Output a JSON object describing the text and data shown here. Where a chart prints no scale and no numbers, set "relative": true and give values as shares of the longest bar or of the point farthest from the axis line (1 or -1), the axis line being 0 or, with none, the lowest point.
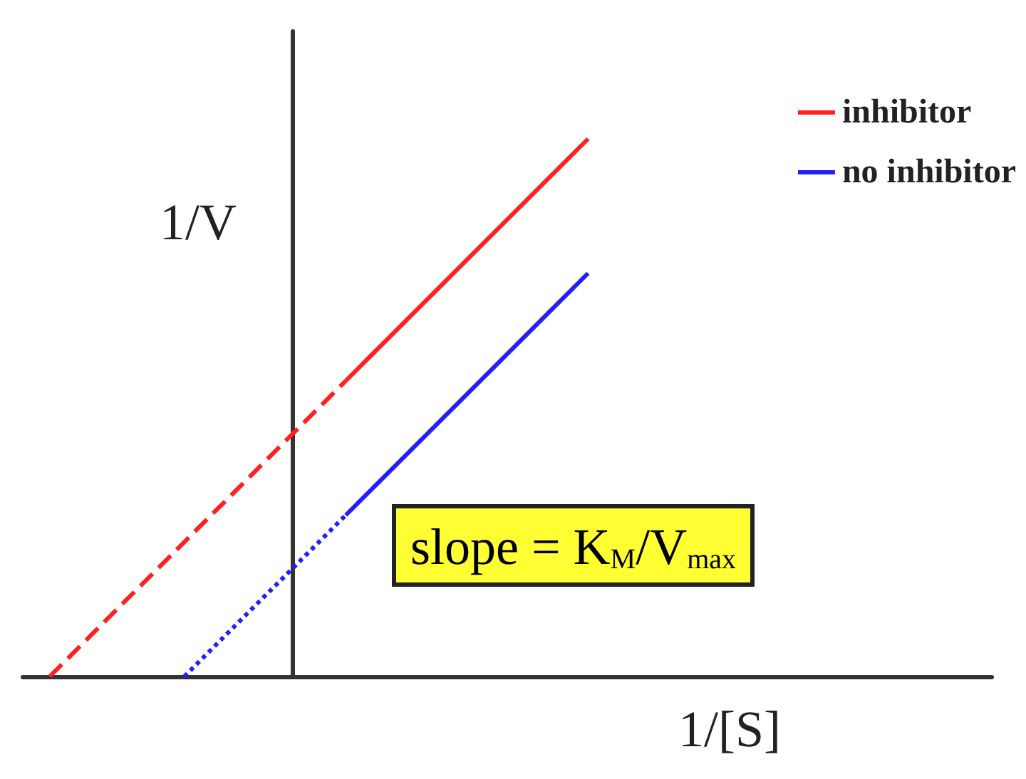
{
  "chart_data": {
    "type": "line",
    "relative": true,
    "xlabel": "1/[S]",
    "ylabel": "1/V",
    "annotations": [
      "slope = K$_{M}$/V$_{max}$"
    ],
    "categories": [
      null,
      null,
      null,
      null,
      null,
      null,
      null,
      null,
      null,
      null,
      null,
      null,
      null,
      null,
      null,
      null,
      null,
      null,
      null,
      null,
      null,
      null,
      null,
      null,
      null,
      null,
      null,
      null,
      null,
      null,
      null,
      null,
      null,
      null,
      null,
      null,
      null
    ],
    "legend": "top right",
    "grid": false,
    "marker": "none",
    "series": [
      {
        "name": "inhibitor",
        "color": "#ff2020",
        "line_style": "solid",
        "values": [
          null,
          null,
          null,
          null,
          null,
          null,
          null,
          null,
          null,
          null,
          null,
          null,
          0.55,
          null,
          null,
          null,
          null,
          null,
          null,
          null,
          null,
          1.0,
          null,
          null,
          null,
          null,
          null,
          null,
          null,
          null,
          null,
          null,
          null,
          null,
          null,
          null,
          null
        ]
      },
      {
        "name": "no inhibitor",
        "color": "#2020ff",
        "line_style": "solid",
        "values": [
          null,
          null,
          null,
          null,
          null,
          null,
          null,
          null,
          null,
          null,
          null,
          null,
          0.3,
          null,
          null,
          null,
          null,
          null,
          null,
          null,
          null,
          0.75,
          null,
          null,
          null,
          null,
          null,
          null,
          null,
          null,
          null,
          null,
          null,
          null,
          null,
          null,
          null
        ]
      },
      {
        "color": "#ff2020",
        "line_style": "dashed",
        "values": [
          null,
          0,
          null,
          null,
          null,
          null,
          null,
          null,
          null,
          null,
          null,
          null,
          0.55,
          null,
          null,
          null,
          null,
          null,
          null,
          null,
          null,
          null,
          null,
          null,
          null,
          null,
          null,
          null,
          null,
          null,
          null,
          null,
          null,
          null,
          null,
          null,
          null
        ]
      },
      {
        "color": "#2020ff",
        "line_style": "dotted",
        "values": [
          null,
          null,
          null,
          null,
          null,
          null,
          0,
          null,
          null,
          null,
          null,
          null,
          0.3,
          null,
          null,
          null,
          null,
          null,
          null,
          null,
          null,
          null,
          null,
          null,
          null,
          null,
          null,
          null,
          null,
          null,
          null,
          null,
          null,
          null,
          null,
          null,
          null
        ]
      }
    ]
  }
}
